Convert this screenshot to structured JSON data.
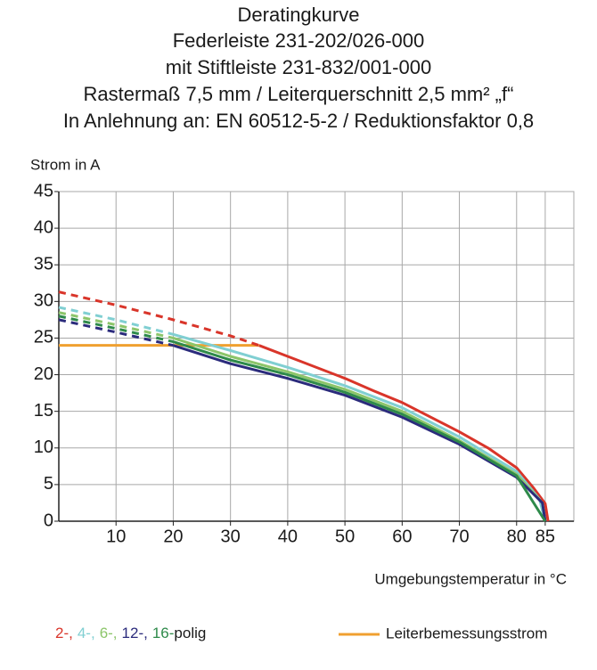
{
  "chart_data": {
    "type": "line",
    "title": [
      "Deratingkurve",
      "Federleiste 231-202/026-000",
      "mit Stiftleiste 231-832/001-000",
      "Rastermaß 7,5 mm / Leiterquerschnitt 2,5 mm² „f“",
      "In Anlehnung an: EN 60512-5-2 / Reduktionsfaktor 0,8"
    ],
    "y_label": "Strom in A",
    "x_label": "Umgebungstemperatur in °C",
    "xlim": [
      0,
      90
    ],
    "ylim": [
      0,
      45
    ],
    "xticks": [
      10,
      20,
      30,
      40,
      50,
      60,
      70,
      80,
      85
    ],
    "yticks": [
      0,
      5,
      10,
      15,
      20,
      25,
      30,
      35,
      40,
      45
    ],
    "grid": true,
    "legend_suffix": "polig",
    "series": [
      {
        "name": "2-,",
        "color": "#d9352a",
        "dashed_until": 35,
        "x": [
          0,
          10,
          20,
          30,
          35,
          40,
          50,
          55,
          60,
          70,
          75,
          80,
          83,
          85,
          85.5
        ],
        "values": [
          31.3,
          29.5,
          27.5,
          25.3,
          24,
          22.5,
          19.5,
          17.8,
          16.2,
          12.2,
          10,
          7.3,
          4.5,
          2.4,
          0
        ]
      },
      {
        "name": "4-,",
        "color": "#80cfd2",
        "dashed_until": 20,
        "x": [
          0,
          10,
          20,
          30,
          40,
          50,
          60,
          70,
          80,
          84,
          85
        ],
        "values": [
          29.2,
          27.5,
          25.5,
          23.3,
          21,
          18.5,
          15.5,
          11.5,
          6.8,
          3,
          0
        ]
      },
      {
        "name": "6-,",
        "color": "#8cc56a",
        "dashed_until": 20,
        "x": [
          0,
          10,
          20,
          30,
          40,
          50,
          60,
          70,
          80,
          84.5,
          85
        ],
        "values": [
          28.5,
          26.8,
          25,
          22.5,
          20.4,
          18,
          15,
          11,
          6.4,
          2.5,
          0
        ]
      },
      {
        "name": "12-,",
        "color": "#2b2b7c",
        "dashed_until": 20,
        "x": [
          0,
          10,
          20,
          30,
          40,
          50,
          60,
          70,
          80,
          84.5,
          85
        ],
        "values": [
          27.5,
          25.8,
          24,
          21.5,
          19.5,
          17.2,
          14.2,
          10.5,
          6,
          2.5,
          0
        ]
      },
      {
        "name": "16-",
        "color": "#2e8a4a",
        "dashed_until": 20,
        "x": [
          0,
          10,
          20,
          30,
          40,
          50,
          60,
          70,
          80,
          85
        ],
        "values": [
          28,
          26.3,
          24.5,
          22,
          20,
          17.6,
          14.6,
          10.8,
          6.2,
          0
        ]
      }
    ],
    "reference_line": {
      "name": "Leiterbemessungsstrom",
      "color": "#f0a030",
      "x": [
        0,
        35
      ],
      "values": [
        24,
        24
      ]
    }
  }
}
